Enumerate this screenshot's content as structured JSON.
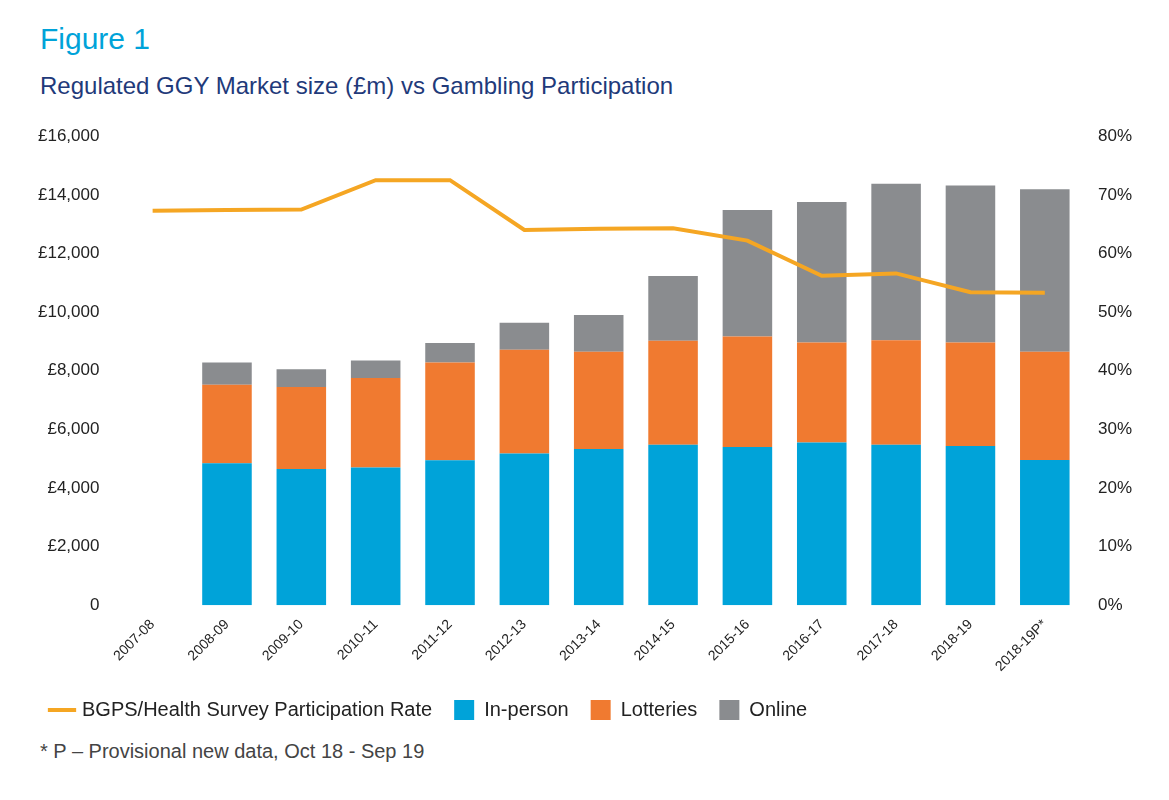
{
  "chart_data": {
    "type": "bar",
    "title": "Figure 1",
    "subtitle": "Regulated GGY Market size (£m) vs Gambling Participation",
    "annotations": [
      "* P – Provisional new data, Oct 18 - Sep 19"
    ],
    "categories": [
      "2007-08",
      "2008-09",
      "2009-10",
      "2010-11",
      "2011-12",
      "2012-13",
      "2013-14",
      "2014-15",
      "2015-16",
      "2016-17",
      "2017-18",
      "2018-19",
      "2018-19P*"
    ],
    "stacked": true,
    "grid": false,
    "legend": "bottom",
    "series": [
      {
        "name": "In-person",
        "color": "#00a3d9",
        "type": "bar",
        "values": [
          null,
          4850,
          4650,
          4700,
          4950,
          5180,
          5330,
          5480,
          5400,
          5550,
          5480,
          5430,
          4960
        ]
      },
      {
        "name": "Lotteries",
        "color": "#f07a30",
        "type": "bar",
        "values": [
          null,
          2670,
          2800,
          3050,
          3330,
          3540,
          3320,
          3540,
          3770,
          3410,
          3560,
          3530,
          3690
        ]
      },
      {
        "name": "Online",
        "color": "#8a8c8f",
        "type": "bar",
        "values": [
          null,
          760,
          600,
          600,
          670,
          920,
          1250,
          2210,
          4310,
          4800,
          5340,
          5360,
          5540
        ]
      },
      {
        "name": "BGPS/Health Survey Participation Rate",
        "color": "#f5a623",
        "type": "line",
        "axis": "y2",
        "values": [
          67.3,
          67.4,
          67.5,
          72.5,
          72.5,
          64.0,
          64.2,
          64.3,
          62.2,
          56.2,
          56.6,
          53.4,
          53.3
        ]
      }
    ],
    "ylim": [
      0,
      16000
    ],
    "yticks": [
      {
        "value": 0,
        "label": "0"
      },
      {
        "value": 2000,
        "label": "£2,000"
      },
      {
        "value": 4000,
        "label": "£4,000"
      },
      {
        "value": 6000,
        "label": "£6,000"
      },
      {
        "value": 8000,
        "label": "£8,000"
      },
      {
        "value": 10000,
        "label": "£10,000"
      },
      {
        "value": 12000,
        "label": "£12,000"
      },
      {
        "value": 14000,
        "label": "£14,000"
      },
      {
        "value": 16000,
        "label": "£16,000"
      }
    ],
    "y2lim": [
      0,
      80
    ],
    "y2ticks": [
      {
        "value": 0,
        "label": "0%"
      },
      {
        "value": 10,
        "label": "10%"
      },
      {
        "value": 20,
        "label": "20%"
      },
      {
        "value": 30,
        "label": "30%"
      },
      {
        "value": 40,
        "label": "40%"
      },
      {
        "value": 50,
        "label": "50%"
      },
      {
        "value": 60,
        "label": "60%"
      },
      {
        "value": 70,
        "label": "70%"
      },
      {
        "value": 80,
        "label": "80%"
      }
    ]
  }
}
